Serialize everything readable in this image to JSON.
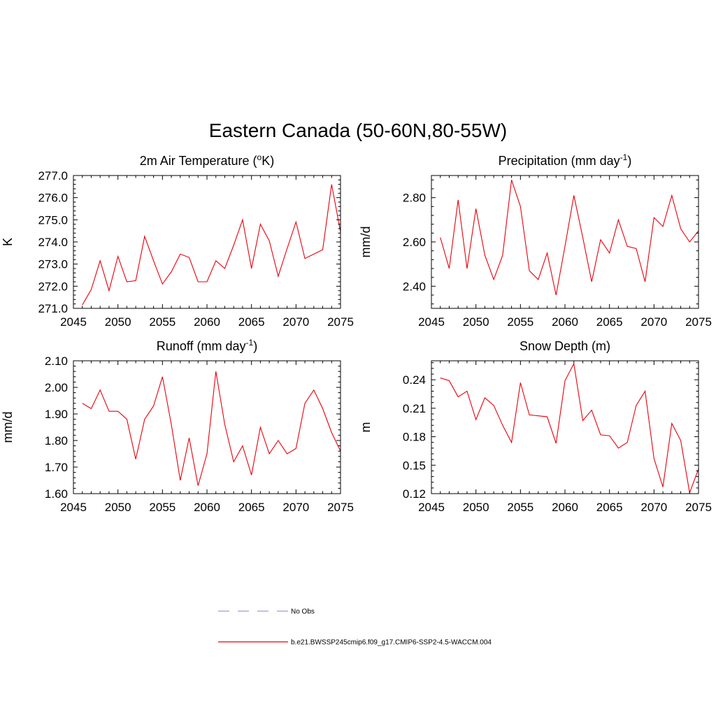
{
  "figure": {
    "title": "Eastern Canada (50-60N,80-55W)",
    "line_color": "#e8000b",
    "obs_color": "#9a9ad6"
  },
  "legend": {
    "obs_label": "No Obs",
    "model_label": "b.e21.BWSSP245cmip6.f09_g17.CMIP6-SSP2-4.5-WACCM.004"
  },
  "chart_data": [
    {
      "type": "line",
      "title": "2m Air Temperature (",
      "title_sup": "o",
      "title_tail": "K)",
      "ylabel": "K",
      "xlim": [
        2045,
        2075
      ],
      "ylim": [
        271.0,
        277.0
      ],
      "xticks": [
        2045,
        2050,
        2055,
        2060,
        2065,
        2070,
        2075
      ],
      "yticks": [
        271.0,
        272.0,
        273.0,
        274.0,
        275.0,
        276.0,
        277.0
      ],
      "ytick_labels": [
        "271.0",
        "272.0",
        "273.0",
        "274.0",
        "275.0",
        "276.0",
        "277.0"
      ],
      "series": [
        {
          "x": [
            2046,
            2047,
            2048,
            2049,
            2050,
            2051,
            2052,
            2053,
            2054,
            2055,
            2056,
            2057,
            2058,
            2059,
            2060,
            2061,
            2062,
            2063,
            2064,
            2065,
            2066,
            2067,
            2068,
            2069,
            2070,
            2071,
            2072,
            2073,
            2074,
            2075
          ],
          "values": [
            271.15,
            271.85,
            273.15,
            271.8,
            273.35,
            272.2,
            272.25,
            274.25,
            273.15,
            272.1,
            272.65,
            273.45,
            273.3,
            272.2,
            272.2,
            273.15,
            272.8,
            273.85,
            275.0,
            272.8,
            274.8,
            274.05,
            272.45,
            273.7,
            274.9,
            273.25,
            273.45,
            273.65,
            276.6,
            274.45
          ]
        }
      ]
    },
    {
      "type": "line",
      "title": "Precipitation (mm day",
      "title_sup": "-1",
      "title_tail": ")",
      "ylabel": "mm/d",
      "xlim": [
        2045,
        2075
      ],
      "ylim": [
        2.3,
        2.9
      ],
      "xticks": [
        2045,
        2050,
        2055,
        2060,
        2065,
        2070,
        2075
      ],
      "yticks": [
        2.4,
        2.6,
        2.8
      ],
      "ytick_labels": [
        "2.40",
        "2.60",
        "2.80"
      ],
      "series": [
        {
          "x": [
            2046,
            2047,
            2048,
            2049,
            2050,
            2051,
            2052,
            2053,
            2054,
            2055,
            2056,
            2057,
            2058,
            2059,
            2060,
            2061,
            2062,
            2063,
            2064,
            2065,
            2066,
            2067,
            2068,
            2069,
            2070,
            2071,
            2072,
            2073,
            2074,
            2075
          ],
          "values": [
            2.62,
            2.48,
            2.79,
            2.48,
            2.75,
            2.54,
            2.43,
            2.54,
            2.88,
            2.76,
            2.47,
            2.43,
            2.55,
            2.36,
            2.58,
            2.81,
            2.62,
            2.42,
            2.61,
            2.55,
            2.7,
            2.58,
            2.57,
            2.42,
            2.71,
            2.67,
            2.81,
            2.66,
            2.6,
            2.65
          ]
        }
      ]
    },
    {
      "type": "line",
      "title": "Runoff (mm day",
      "title_sup": "-1",
      "title_tail": ")",
      "ylabel": "mm/d",
      "xlim": [
        2045,
        2075
      ],
      "ylim": [
        1.6,
        2.1
      ],
      "xticks": [
        2045,
        2050,
        2055,
        2060,
        2065,
        2070,
        2075
      ],
      "yticks": [
        1.6,
        1.7,
        1.8,
        1.9,
        2.0,
        2.1
      ],
      "ytick_labels": [
        "1.60",
        "1.70",
        "1.80",
        "1.90",
        "2.00",
        "2.10"
      ],
      "series": [
        {
          "x": [
            2046,
            2047,
            2048,
            2049,
            2050,
            2051,
            2052,
            2053,
            2054,
            2055,
            2056,
            2057,
            2058,
            2059,
            2060,
            2061,
            2062,
            2063,
            2064,
            2065,
            2066,
            2067,
            2068,
            2069,
            2070,
            2071,
            2072,
            2073,
            2074,
            2075
          ],
          "values": [
            1.94,
            1.92,
            1.99,
            1.91,
            1.91,
            1.88,
            1.73,
            1.88,
            1.93,
            2.04,
            1.86,
            1.65,
            1.81,
            1.63,
            1.75,
            2.06,
            1.86,
            1.72,
            1.78,
            1.67,
            1.85,
            1.75,
            1.8,
            1.75,
            1.77,
            1.94,
            1.99,
            1.92,
            1.83,
            1.76
          ]
        }
      ]
    },
    {
      "type": "line",
      "title": "Snow Depth (m)",
      "title_sup": "",
      "title_tail": "",
      "ylabel": "m",
      "xlim": [
        2045,
        2075
      ],
      "ylim": [
        0.12,
        0.26
      ],
      "xticks": [
        2045,
        2050,
        2055,
        2060,
        2065,
        2070,
        2075
      ],
      "yticks": [
        0.12,
        0.15,
        0.18,
        0.21,
        0.24
      ],
      "ytick_labels": [
        "0.12",
        "0.15",
        "0.18",
        "0.21",
        "0.24"
      ],
      "series": [
        {
          "x": [
            2046,
            2047,
            2048,
            2049,
            2050,
            2051,
            2052,
            2053,
            2054,
            2055,
            2056,
            2057,
            2058,
            2059,
            2060,
            2061,
            2062,
            2063,
            2064,
            2065,
            2066,
            2067,
            2068,
            2069,
            2070,
            2071,
            2072,
            2073,
            2074,
            2075
          ],
          "values": [
            0.242,
            0.239,
            0.222,
            0.228,
            0.198,
            0.221,
            0.213,
            0.192,
            0.174,
            0.237,
            0.203,
            0.202,
            0.201,
            0.173,
            0.239,
            0.257,
            0.197,
            0.208,
            0.182,
            0.181,
            0.168,
            0.174,
            0.213,
            0.228,
            0.157,
            0.127,
            0.194,
            0.176,
            0.121,
            0.146
          ]
        }
      ]
    }
  ]
}
